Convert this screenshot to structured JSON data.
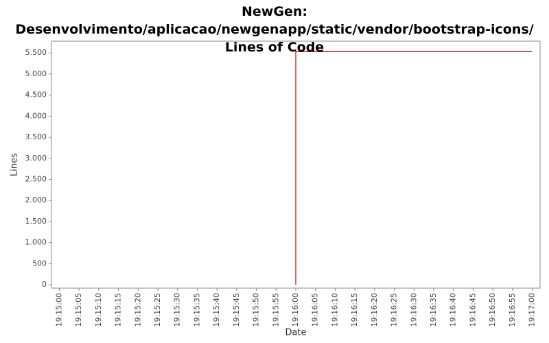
{
  "chart_data": {
    "type": "line",
    "title": "NewGen: Desenvolvimento/aplicacao/newgenapp/static/vendor/bootstrap-icons/ Lines of Code",
    "x_label": "Date",
    "y_label": "Lines",
    "x": [
      "19:16:00",
      "19:16:00",
      "19:17:00"
    ],
    "values": [
      0,
      5530,
      5530
    ],
    "color": "#c00000",
    "xlim": [
      "19:14:58",
      "19:17:02"
    ],
    "xticks": [
      "19:15:00",
      "19:15:05",
      "19:15:10",
      "19:15:15",
      "19:15:20",
      "19:15:25",
      "19:15:30",
      "19:15:35",
      "19:15:40",
      "19:15:45",
      "19:15:50",
      "19:15:55",
      "19:16:00",
      "19:16:05",
      "19:16:10",
      "19:16:15",
      "19:16:20",
      "19:16:25",
      "19:16:30",
      "19:16:35",
      "19:16:40",
      "19:16:45",
      "19:16:50",
      "19:16:55",
      "19:17:00"
    ],
    "ylim": [
      -80,
      5780
    ],
    "yticks": [
      0,
      500,
      {
        "value": 1000,
        "label": "1.000"
      },
      {
        "value": 1500,
        "label": "1.500"
      },
      {
        "value": 2000,
        "label": "2.000"
      },
      {
        "value": 2500,
        "label": "2.500"
      },
      {
        "value": 3000,
        "label": "3.000"
      },
      {
        "value": 3500,
        "label": "3.500"
      },
      {
        "value": 4000,
        "label": "4.000"
      },
      {
        "value": 4500,
        "label": "4.500"
      },
      {
        "value": 5000,
        "label": "5.000"
      },
      {
        "value": 5500,
        "label": "5.500"
      }
    ],
    "grid": false
  }
}
